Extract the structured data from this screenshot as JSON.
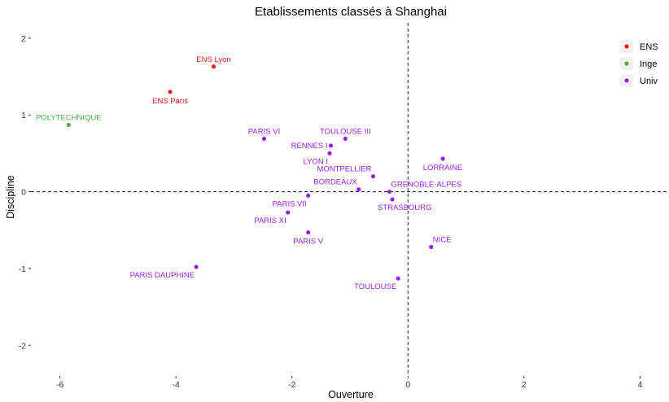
{
  "chart_data": {
    "type": "scatter",
    "title": "Etablissements classés à Shanghai",
    "xlabel": "Ouverture",
    "ylabel": "Discipline",
    "xlim": [
      -6.5,
      4.5
    ],
    "ylim": [
      -2.4,
      2.2
    ],
    "x_ticks": [
      -6,
      -4,
      -2,
      0,
      2,
      4
    ],
    "y_ticks": [
      -2,
      -1,
      0,
      1,
      2
    ],
    "reference_lines": {
      "x": 0,
      "y": 0,
      "style": "dashed"
    },
    "grid": false,
    "legend_position": "top-right",
    "series": [
      {
        "name": "ENS",
        "color": "#e41a1c",
        "points": [
          {
            "label": "ENS Lyon",
            "x": -3.35,
            "y": 1.63,
            "label_pos": "above"
          },
          {
            "label": "ENS Paris",
            "x": -4.1,
            "y": 1.3,
            "label_pos": "below"
          }
        ]
      },
      {
        "name": "Inge",
        "color": "#4daf4a",
        "points": [
          {
            "label": "POLYTECHNIQUE",
            "x": -5.85,
            "y": 0.87,
            "label_pos": "above"
          }
        ]
      },
      {
        "name": "Univ",
        "color": "#9b1ded",
        "points": [
          {
            "label": "PARIS VI",
            "x": -2.48,
            "y": 0.69,
            "label_pos": "above"
          },
          {
            "label": "TOULOUSE III",
            "x": -1.08,
            "y": 0.69,
            "label_pos": "above"
          },
          {
            "label": "RENNES I",
            "x": -1.33,
            "y": 0.6,
            "label_pos": "left"
          },
          {
            "label": "LYON I",
            "x": -1.35,
            "y": 0.5,
            "label_pos": "below-left"
          },
          {
            "label": "LORRAINE",
            "x": 0.6,
            "y": 0.43,
            "label_pos": "below"
          },
          {
            "label": "MONTPELLIER",
            "x": -0.6,
            "y": 0.2,
            "label_pos": "above-left"
          },
          {
            "label": "BORDEAUX",
            "x": -0.85,
            "y": 0.03,
            "label_pos": "above-left"
          },
          {
            "label": "GRENOBLE-ALPES",
            "x": -0.32,
            "y": 0.0,
            "label_pos": "above-right"
          },
          {
            "label": "PARIS VII",
            "x": -1.72,
            "y": -0.05,
            "label_pos": "below-left"
          },
          {
            "label": "STRASBOURG",
            "x": -0.27,
            "y": -0.1,
            "label_pos": "below-right"
          },
          {
            "label": "PARIS XI",
            "x": -2.07,
            "y": -0.27,
            "label_pos": "below-left"
          },
          {
            "label": "PARIS V",
            "x": -1.72,
            "y": -0.53,
            "label_pos": "below"
          },
          {
            "label": "NICE",
            "x": 0.4,
            "y": -0.72,
            "label_pos": "above-right"
          },
          {
            "label": "PARIS DAUPHINE",
            "x": -3.65,
            "y": -0.98,
            "label_pos": "below-left"
          },
          {
            "label": "TOULOUSE",
            "x": -0.17,
            "y": -1.13,
            "label_pos": "below-left"
          }
        ]
      }
    ]
  }
}
